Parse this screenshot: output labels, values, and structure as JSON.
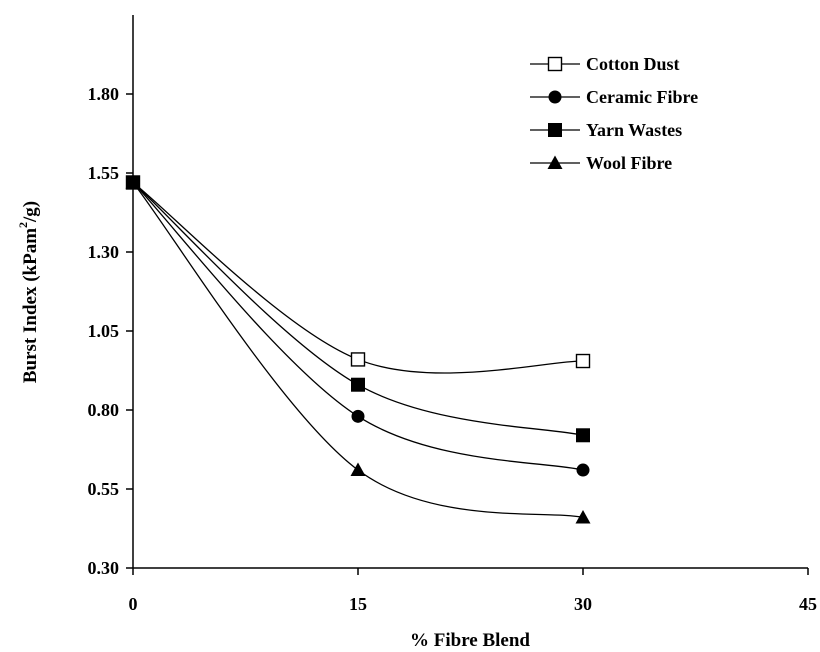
{
  "chart_data": {
    "type": "line",
    "title": "",
    "xlabel": "% Fibre Blend",
    "ylabel_main": "Burst Index (kPam",
    "ylabel_sup": "2",
    "ylabel_tail": "/g)",
    "xlim": [
      0,
      45
    ],
    "ylim": [
      0.3,
      2.05
    ],
    "x_ticks": [
      0,
      15,
      30,
      45
    ],
    "x_tick_labels": [
      "0",
      "15",
      "30",
      "45"
    ],
    "y_ticks": [
      0.3,
      0.55,
      0.8,
      1.05,
      1.3,
      1.55,
      1.8
    ],
    "y_tick_labels": [
      "0.30",
      "0.55",
      "0.80",
      "1.05",
      "1.30",
      "1.55",
      "1.80"
    ],
    "x": [
      0,
      15,
      30
    ],
    "legend_position": "top-right",
    "series": [
      {
        "name": "Cotton Dust",
        "marker": "open-square",
        "values": [
          1.52,
          0.96,
          0.955
        ]
      },
      {
        "name": "Ceramic Fibre",
        "marker": "filled-circle",
        "values": [
          1.52,
          0.78,
          0.61
        ]
      },
      {
        "name": "Yarn Wastes",
        "marker": "filled-square",
        "values": [
          1.52,
          0.88,
          0.72
        ]
      },
      {
        "name": "Wool Fibre",
        "marker": "filled-triangle",
        "values": [
          1.52,
          0.61,
          0.46
        ]
      }
    ]
  }
}
